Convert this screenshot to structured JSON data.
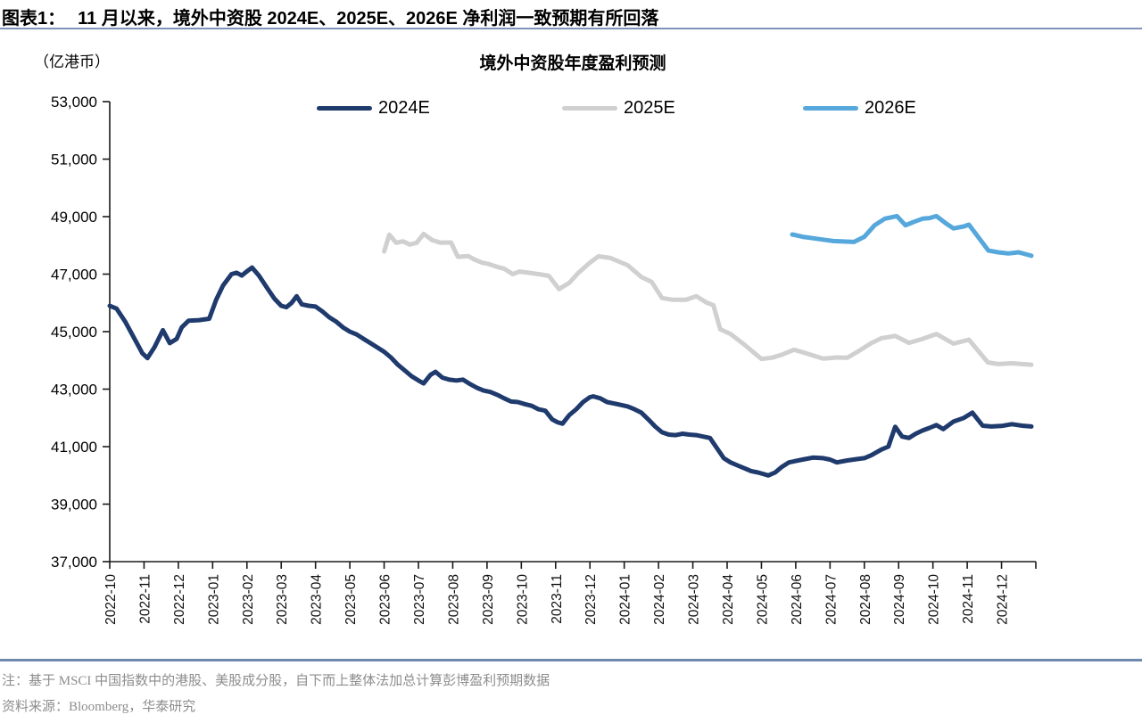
{
  "page": {
    "figure_label": "图表1：",
    "figure_title": "11 月以来，境外中资股 2024E、2025E、2026E 净利润一致预期有所回落",
    "note": "注：基于 MSCI 中国指数中的港股、美股成分股，自下而上整体法加总计算彭博盈利预期数据",
    "source": "资料来源：Bloomberg，华泰研究"
  },
  "chart_data": {
    "type": "line",
    "title": "境外中资股年度盈利预测",
    "unit_label": "（亿港币）",
    "legend_position": "top",
    "grid": false,
    "y_axis": {
      "min": 37000,
      "max": 53000,
      "tick_step": 2000,
      "tick_labels": [
        "37,000",
        "39,000",
        "41,000",
        "43,000",
        "45,000",
        "47,000",
        "49,000",
        "51,000",
        "53,000"
      ]
    },
    "x_axis": {
      "label_rotation": -90,
      "tick_labels": [
        "2022-10",
        "2022-11",
        "2022-12",
        "2023-01",
        "2023-02",
        "2023-03",
        "2023-04",
        "2023-05",
        "2023-06",
        "2023-07",
        "2023-08",
        "2023-09",
        "2023-10",
        "2023-11",
        "2023-12",
        "2024-01",
        "2024-02",
        "2024-03",
        "2024-04",
        "2024-05",
        "2024-06",
        "2024-07",
        "2024-08",
        "2024-09",
        "2024-10",
        "2024-11",
        "2024-12"
      ]
    },
    "series": [
      {
        "name": "2024E",
        "color": "#1f3a6c",
        "points": [
          [
            0,
            45900
          ],
          [
            0.2,
            45800
          ],
          [
            0.45,
            45350
          ],
          [
            0.7,
            44800
          ],
          [
            0.95,
            44250
          ],
          [
            1.1,
            44080
          ],
          [
            1.3,
            44450
          ],
          [
            1.55,
            45050
          ],
          [
            1.75,
            44600
          ],
          [
            1.95,
            44750
          ],
          [
            2.1,
            45150
          ],
          [
            2.3,
            45380
          ],
          [
            2.6,
            45400
          ],
          [
            2.9,
            45450
          ],
          [
            3.1,
            46100
          ],
          [
            3.3,
            46600
          ],
          [
            3.55,
            47000
          ],
          [
            3.7,
            47050
          ],
          [
            3.85,
            46950
          ],
          [
            4,
            47100
          ],
          [
            4.15,
            47230
          ],
          [
            4.35,
            46950
          ],
          [
            4.6,
            46500
          ],
          [
            4.8,
            46150
          ],
          [
            5,
            45900
          ],
          [
            5.15,
            45850
          ],
          [
            5.3,
            46000
          ],
          [
            5.45,
            46230
          ],
          [
            5.6,
            45950
          ],
          [
            5.8,
            45900
          ],
          [
            6,
            45870
          ],
          [
            6.2,
            45700
          ],
          [
            6.4,
            45500
          ],
          [
            6.6,
            45350
          ],
          [
            6.8,
            45150
          ],
          [
            7,
            45000
          ],
          [
            7.2,
            44900
          ],
          [
            7.4,
            44750
          ],
          [
            7.6,
            44600
          ],
          [
            7.8,
            44450
          ],
          [
            8,
            44300
          ],
          [
            8.2,
            44100
          ],
          [
            8.4,
            43850
          ],
          [
            8.6,
            43650
          ],
          [
            8.8,
            43450
          ],
          [
            9,
            43300
          ],
          [
            9.15,
            43200
          ],
          [
            9.35,
            43500
          ],
          [
            9.5,
            43600
          ],
          [
            9.7,
            43400
          ],
          [
            9.9,
            43330
          ],
          [
            10.1,
            43300
          ],
          [
            10.3,
            43330
          ],
          [
            10.5,
            43180
          ],
          [
            10.7,
            43050
          ],
          [
            10.9,
            42950
          ],
          [
            11.1,
            42900
          ],
          [
            11.3,
            42800
          ],
          [
            11.5,
            42680
          ],
          [
            11.7,
            42570
          ],
          [
            11.9,
            42550
          ],
          [
            12.1,
            42480
          ],
          [
            12.3,
            42420
          ],
          [
            12.5,
            42300
          ],
          [
            12.7,
            42250
          ],
          [
            12.9,
            41950
          ],
          [
            13.05,
            41850
          ],
          [
            13.2,
            41800
          ],
          [
            13.4,
            42100
          ],
          [
            13.6,
            42300
          ],
          [
            13.8,
            42550
          ],
          [
            14,
            42720
          ],
          [
            14.1,
            42750
          ],
          [
            14.3,
            42680
          ],
          [
            14.5,
            42550
          ],
          [
            14.7,
            42500
          ],
          [
            14.9,
            42450
          ],
          [
            15.1,
            42400
          ],
          [
            15.3,
            42300
          ],
          [
            15.5,
            42180
          ],
          [
            15.7,
            41950
          ],
          [
            15.9,
            41700
          ],
          [
            16.1,
            41500
          ],
          [
            16.3,
            41420
          ],
          [
            16.5,
            41400
          ],
          [
            16.7,
            41450
          ],
          [
            16.9,
            41420
          ],
          [
            17.1,
            41400
          ],
          [
            17.3,
            41350
          ],
          [
            17.5,
            41300
          ],
          [
            17.7,
            40950
          ],
          [
            17.9,
            40600
          ],
          [
            18.1,
            40450
          ],
          [
            18.3,
            40350
          ],
          [
            18.5,
            40250
          ],
          [
            18.7,
            40150
          ],
          [
            18.9,
            40100
          ],
          [
            19.05,
            40050
          ],
          [
            19.2,
            40000
          ],
          [
            19.4,
            40100
          ],
          [
            19.6,
            40300
          ],
          [
            19.8,
            40450
          ],
          [
            20,
            40500
          ],
          [
            20.2,
            40550
          ],
          [
            20.5,
            40620
          ],
          [
            20.8,
            40600
          ],
          [
            21,
            40550
          ],
          [
            21.2,
            40450
          ],
          [
            21.5,
            40520
          ],
          [
            21.8,
            40570
          ],
          [
            22,
            40600
          ],
          [
            22.2,
            40700
          ],
          [
            22.5,
            40900
          ],
          [
            22.7,
            41000
          ],
          [
            22.9,
            41690
          ],
          [
            23.1,
            41350
          ],
          [
            23.3,
            41300
          ],
          [
            23.5,
            41450
          ],
          [
            23.7,
            41560
          ],
          [
            23.9,
            41650
          ],
          [
            24.1,
            41750
          ],
          [
            24.3,
            41610
          ],
          [
            24.6,
            41870
          ],
          [
            24.9,
            42000
          ],
          [
            25.15,
            42180
          ],
          [
            25.45,
            41730
          ],
          [
            25.7,
            41700
          ],
          [
            26,
            41720
          ],
          [
            26.3,
            41780
          ],
          [
            26.6,
            41730
          ],
          [
            26.87,
            41700
          ]
        ]
      },
      {
        "name": "2025E",
        "color": "#d0d0d0",
        "points": [
          [
            8,
            47790
          ],
          [
            8.15,
            48370
          ],
          [
            8.35,
            48090
          ],
          [
            8.55,
            48140
          ],
          [
            8.75,
            48030
          ],
          [
            8.95,
            48090
          ],
          [
            9.15,
            48400
          ],
          [
            9.4,
            48180
          ],
          [
            9.65,
            48090
          ],
          [
            9.95,
            48100
          ],
          [
            10.15,
            47600
          ],
          [
            10.45,
            47630
          ],
          [
            10.65,
            47500
          ],
          [
            10.85,
            47400
          ],
          [
            11.05,
            47350
          ],
          [
            11.3,
            47250
          ],
          [
            11.5,
            47190
          ],
          [
            11.75,
            47000
          ],
          [
            11.95,
            47090
          ],
          [
            12.2,
            47050
          ],
          [
            12.5,
            47000
          ],
          [
            12.8,
            46940
          ],
          [
            13.1,
            46480
          ],
          [
            13.4,
            46700
          ],
          [
            13.65,
            47030
          ],
          [
            14,
            47400
          ],
          [
            14.25,
            47620
          ],
          [
            14.6,
            47560
          ],
          [
            15.1,
            47310
          ],
          [
            15.5,
            46900
          ],
          [
            15.8,
            46730
          ],
          [
            16.1,
            46170
          ],
          [
            16.4,
            46110
          ],
          [
            16.8,
            46110
          ],
          [
            17.1,
            46230
          ],
          [
            17.4,
            46010
          ],
          [
            17.6,
            45920
          ],
          [
            17.8,
            45080
          ],
          [
            18.1,
            44920
          ],
          [
            18.5,
            44550
          ],
          [
            19,
            44050
          ],
          [
            19.3,
            44090
          ],
          [
            19.6,
            44200
          ],
          [
            19.95,
            44370
          ],
          [
            20.3,
            44250
          ],
          [
            20.8,
            44060
          ],
          [
            21.2,
            44100
          ],
          [
            21.5,
            44090
          ],
          [
            21.8,
            44300
          ],
          [
            22.2,
            44600
          ],
          [
            22.5,
            44770
          ],
          [
            22.9,
            44850
          ],
          [
            23.3,
            44610
          ],
          [
            23.7,
            44750
          ],
          [
            24.1,
            44920
          ],
          [
            24.6,
            44580
          ],
          [
            25.05,
            44720
          ],
          [
            25.6,
            43930
          ],
          [
            25.9,
            43870
          ],
          [
            26.3,
            43900
          ],
          [
            26.6,
            43870
          ],
          [
            26.87,
            43850
          ]
        ]
      },
      {
        "name": "2026E",
        "color": "#55a7dc",
        "points": [
          [
            19.9,
            48380
          ],
          [
            20.2,
            48300
          ],
          [
            20.5,
            48250
          ],
          [
            20.8,
            48200
          ],
          [
            21.1,
            48150
          ],
          [
            21.7,
            48120
          ],
          [
            22,
            48300
          ],
          [
            22.3,
            48700
          ],
          [
            22.6,
            48930
          ],
          [
            22.95,
            49020
          ],
          [
            23.2,
            48700
          ],
          [
            23.45,
            48820
          ],
          [
            23.7,
            48930
          ],
          [
            23.9,
            48950
          ],
          [
            24.1,
            49020
          ],
          [
            24.4,
            48750
          ],
          [
            24.6,
            48590
          ],
          [
            24.9,
            48660
          ],
          [
            25.05,
            48720
          ],
          [
            25.62,
            47820
          ],
          [
            25.9,
            47760
          ],
          [
            26.2,
            47720
          ],
          [
            26.5,
            47760
          ],
          [
            26.87,
            47640
          ]
        ]
      }
    ]
  }
}
